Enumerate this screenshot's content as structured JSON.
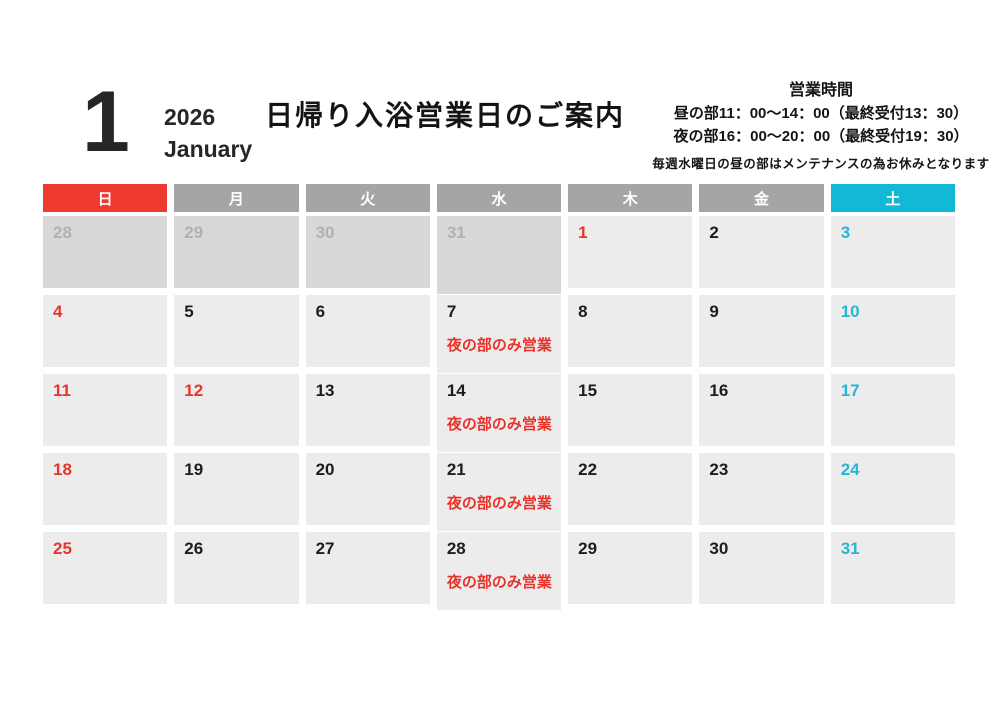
{
  "header": {
    "month_number": "1",
    "year": "2026",
    "month_name": "January",
    "title": "日帰り入浴営業日のご案内",
    "hours_heading": "営業時間",
    "hours_line1": "昼の部11：00～14：00（最終受付13：30）",
    "hours_line2": "夜の部16：00～20：00（最終受付19：30）",
    "hours_note": "毎週水曜日の昼の部はメンテナンスの為お休みとなります"
  },
  "calendar": {
    "weekday_headers": [
      {
        "label": "日",
        "style": "sun"
      },
      {
        "label": "月",
        "style": "mid"
      },
      {
        "label": "火",
        "style": "mid"
      },
      {
        "label": "水",
        "style": "mid"
      },
      {
        "label": "木",
        "style": "mid"
      },
      {
        "label": "金",
        "style": "mid"
      },
      {
        "label": "土",
        "style": "sat"
      }
    ],
    "night_only_label": "夜の部のみ営業",
    "weeks": [
      [
        {
          "day": "28",
          "bg": "prev",
          "color": "muted"
        },
        {
          "day": "29",
          "bg": "prev",
          "color": "muted"
        },
        {
          "day": "30",
          "bg": "prev",
          "color": "muted"
        },
        {
          "day": "31",
          "bg": "prev",
          "color": "muted",
          "tall": true
        },
        {
          "day": "1",
          "color": "red"
        },
        {
          "day": "2",
          "color": "black"
        },
        {
          "day": "3",
          "color": "cyan"
        }
      ],
      [
        {
          "day": "4",
          "color": "red"
        },
        {
          "day": "5",
          "color": "black"
        },
        {
          "day": "6",
          "color": "black"
        },
        {
          "day": "7",
          "color": "black",
          "tall": true,
          "night_only": true
        },
        {
          "day": "8",
          "color": "black"
        },
        {
          "day": "9",
          "color": "black"
        },
        {
          "day": "10",
          "color": "cyan"
        }
      ],
      [
        {
          "day": "11",
          "color": "red"
        },
        {
          "day": "12",
          "color": "red"
        },
        {
          "day": "13",
          "color": "black"
        },
        {
          "day": "14",
          "color": "black",
          "tall": true,
          "night_only": true
        },
        {
          "day": "15",
          "color": "black"
        },
        {
          "day": "16",
          "color": "black"
        },
        {
          "day": "17",
          "color": "cyan"
        }
      ],
      [
        {
          "day": "18",
          "color": "red"
        },
        {
          "day": "19",
          "color": "black"
        },
        {
          "day": "20",
          "color": "black"
        },
        {
          "day": "21",
          "color": "black",
          "tall": true,
          "night_only": true
        },
        {
          "day": "22",
          "color": "black"
        },
        {
          "day": "23",
          "color": "black"
        },
        {
          "day": "24",
          "color": "cyan"
        }
      ],
      [
        {
          "day": "25",
          "color": "red"
        },
        {
          "day": "26",
          "color": "black"
        },
        {
          "day": "27",
          "color": "black"
        },
        {
          "day": "28",
          "color": "black",
          "tall": true,
          "night_only": true
        },
        {
          "day": "29",
          "color": "black"
        },
        {
          "day": "30",
          "color": "black"
        },
        {
          "day": "31",
          "color": "cyan"
        }
      ]
    ],
    "colors": {
      "sunday_header": "#ee3a31",
      "weekday_header": "#a5a5a5",
      "saturday_header": "#12b9d7",
      "cell_background": "#ececec",
      "prev_month_cell_background": "#d8d8d8",
      "holiday_red": "#e8352b",
      "saturday_cyan": "#29b4d4",
      "prev_month_gray": "#b1b1b1",
      "night_only_red": "#e8322a"
    }
  }
}
